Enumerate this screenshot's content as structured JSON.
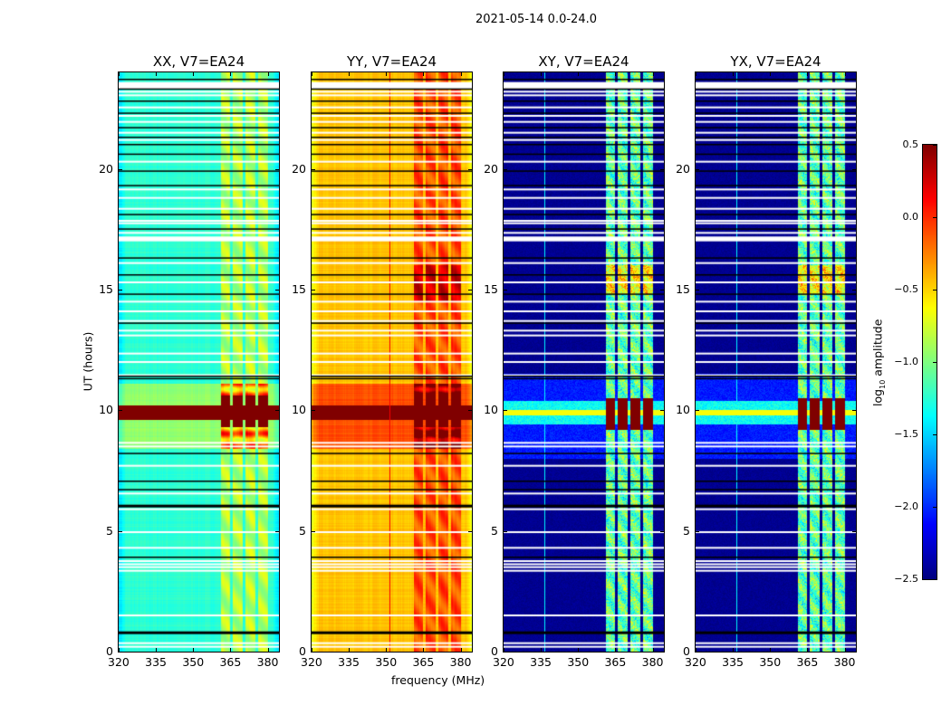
{
  "figure_title": "2021-05-14 0.0-24.0",
  "chart_data": {
    "type": "heatmap",
    "title": "2021-05-14 0.0-24.0",
    "xlabel": "frequency (MHz)",
    "ylabel": "UT (hours)",
    "xlim": [
      320,
      384.5
    ],
    "ylim": [
      0,
      24
    ],
    "xticks": [
      "320",
      "335",
      "350",
      "365",
      "380"
    ],
    "xtick_values": [
      320,
      335,
      350,
      365,
      380
    ],
    "yticks": [
      "0",
      "5",
      "10",
      "15",
      "20"
    ],
    "ytick_values": [
      0,
      5,
      10,
      15,
      20
    ],
    "panels": [
      {
        "title": "XX, V7=EA24",
        "base_log_amp": -1.25,
        "band_log_amp": -0.85,
        "event_log_amp": 0.5
      },
      {
        "title": "YY, V7=EA24",
        "base_log_amp": -0.45,
        "band_log_amp": -0.1,
        "event_log_amp": 0.5
      },
      {
        "title": "XY, V7=EA24",
        "base_log_amp": -2.45,
        "band_log_amp": -1.1,
        "event_log_amp": 0.5
      },
      {
        "title": "YX, V7=EA24",
        "base_log_amp": -2.45,
        "band_log_amp": -1.1,
        "event_log_amp": 0.5
      }
    ],
    "rfi_bands_mhz": [
      [
        361,
        365
      ],
      [
        366,
        370
      ],
      [
        371,
        375
      ],
      [
        376,
        380
      ]
    ],
    "strong_event_hours": [
      9.6,
      10.2
    ],
    "elevated_period_hours": [
      8.4,
      11.1
    ],
    "flagged_rows_hours": [
      0.2,
      0.35,
      1.5,
      3.35,
      3.5,
      3.62,
      3.75,
      4.3,
      4.95,
      5.9,
      6.55,
      7.7,
      8.5,
      8.65,
      11.45,
      12.0,
      12.35,
      13.1,
      13.3,
      13.7,
      14.1,
      14.5,
      15.3,
      16.1,
      17.35,
      17.75,
      17.85,
      18.35,
      18.8,
      19.15,
      20.3,
      21.2,
      21.5,
      21.95,
      22.2,
      22.55,
      23.05,
      23.2
    ],
    "flagged_blocks_hours": [
      [
        17.0,
        17.2
      ],
      [
        23.3,
        23.6
      ]
    ],
    "zero_rows_hours": [
      0.8,
      3.9,
      6.05,
      6.7,
      7.05,
      8.2,
      11.3,
      11.4,
      13.6,
      14.8,
      15.6,
      16.3,
      17.5,
      18.1,
      19.3,
      19.9,
      20.6,
      21.0,
      21.3,
      21.7,
      22.3,
      22.8,
      23.3,
      23.7
    ],
    "colorbar": {
      "label_prefix": "log",
      "label_sub": "10",
      "label_suffix": " amplitude",
      "range": [
        -2.5,
        0.5
      ],
      "ticks": [
        "0.5",
        "0.0",
        "−0.5",
        "−1.0",
        "−1.5",
        "−2.0",
        "−2.5"
      ],
      "tick_values": [
        0.5,
        0.0,
        -0.5,
        -1.0,
        -1.5,
        -2.0,
        -2.5
      ],
      "colormap": "jet"
    }
  }
}
